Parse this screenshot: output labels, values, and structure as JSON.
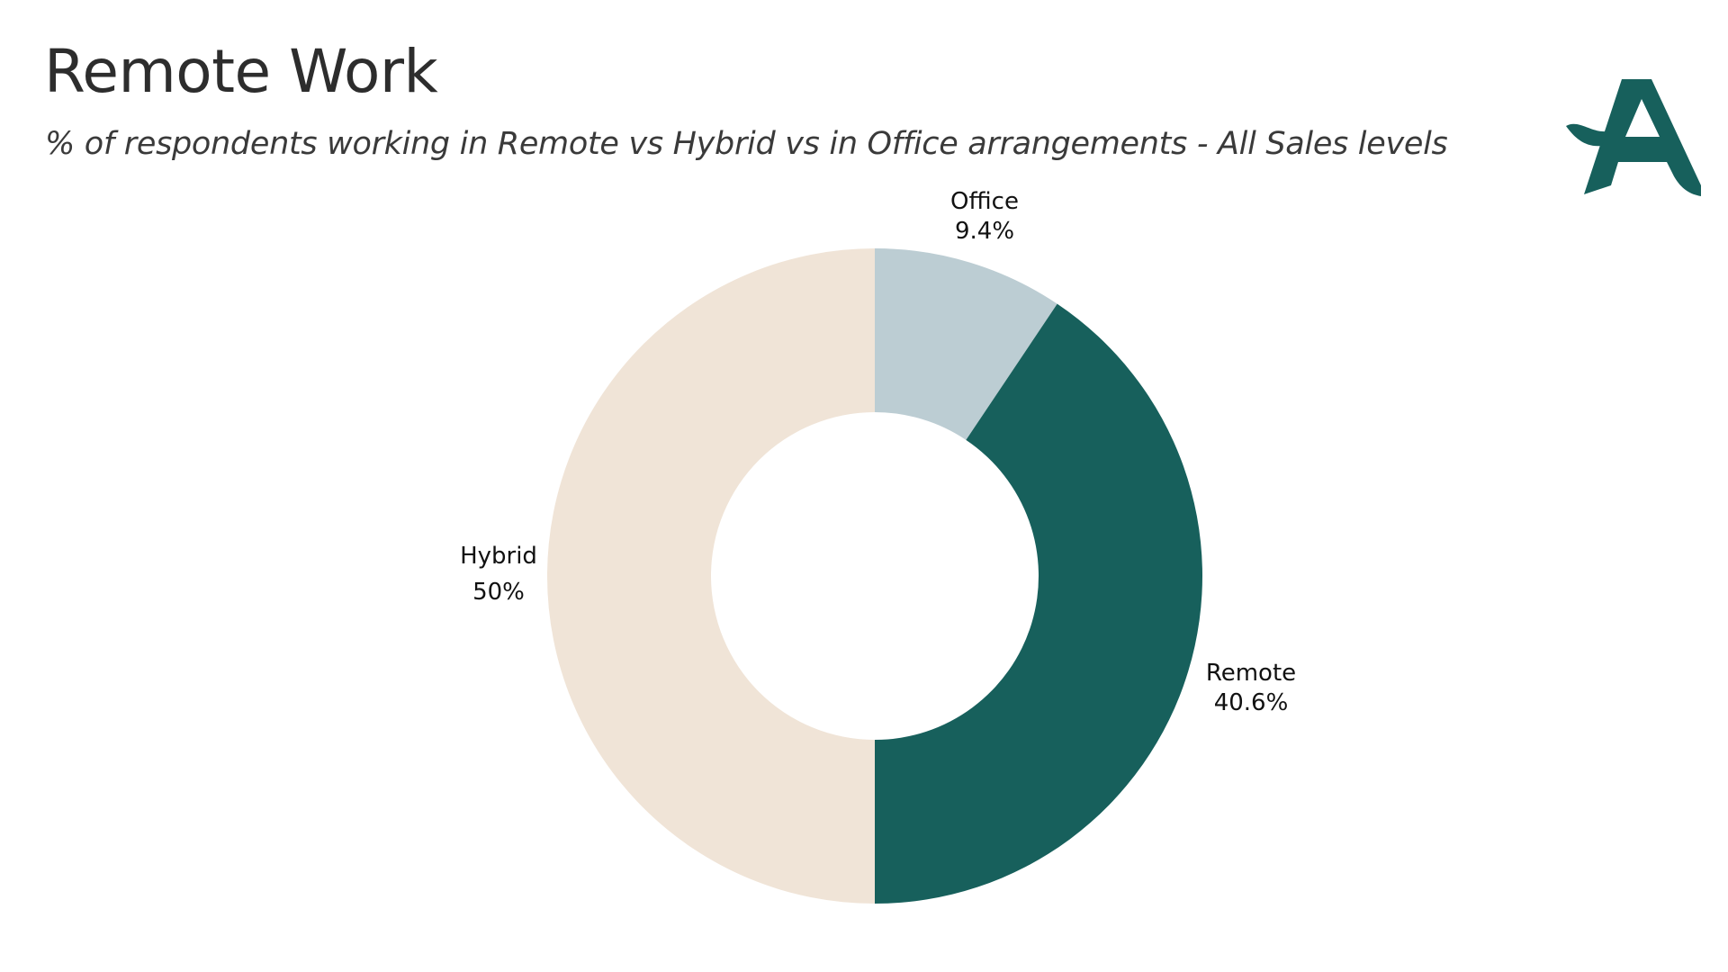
{
  "header": {
    "title": "Remote Work",
    "subtitle": "% of respondents working in Remote vs Hybrid vs in Office arrangements - All Sales levels"
  },
  "logo": {
    "icon": "brand-a-logo-icon",
    "color": "#17605c"
  },
  "chart_data": {
    "type": "pie",
    "variant": "donut",
    "title": "Remote Work",
    "subtitle": "% of respondents working in Remote vs Hybrid vs in Office arrangements - All Sales levels",
    "categories": [
      "Office",
      "Remote",
      "Hybrid"
    ],
    "values": [
      9.4,
      40.6,
      50
    ],
    "value_labels": [
      "9.4%",
      "40.6%",
      "50%"
    ],
    "colors": [
      "#bccdd3",
      "#17605c",
      "#f0e4d7"
    ],
    "start_angle": "12 o'clock, clockwise",
    "legend": "none (labels outside slices)"
  }
}
